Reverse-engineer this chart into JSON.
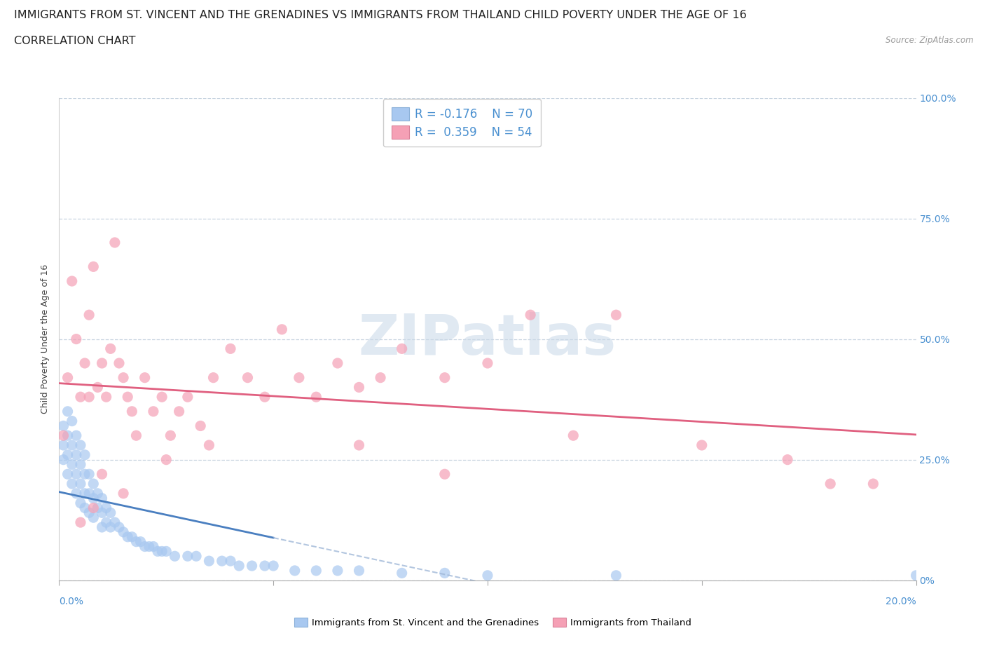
{
  "title": "IMMIGRANTS FROM ST. VINCENT AND THE GRENADINES VS IMMIGRANTS FROM THAILAND CHILD POVERTY UNDER THE AGE OF 16",
  "subtitle": "CORRELATION CHART",
  "source": "Source: ZipAtlas.com",
  "ylabel": "Child Poverty Under the Age of 16",
  "legend_label1": "Immigrants from St. Vincent and the Grenadines",
  "legend_label2": "Immigrants from Thailand",
  "R1": -0.176,
  "N1": 70,
  "R2": 0.359,
  "N2": 54,
  "watermark": "ZIPatlas",
  "color_blue": "#a8c8f0",
  "color_pink": "#f5a0b5",
  "color_blue_line": "#4a7fc0",
  "color_pink_line": "#e06080",
  "color_dashed": "#a0b8d8",
  "blue_x": [
    0.001,
    0.001,
    0.001,
    0.002,
    0.002,
    0.002,
    0.002,
    0.003,
    0.003,
    0.003,
    0.003,
    0.004,
    0.004,
    0.004,
    0.004,
    0.005,
    0.005,
    0.005,
    0.005,
    0.006,
    0.006,
    0.006,
    0.006,
    0.007,
    0.007,
    0.007,
    0.008,
    0.008,
    0.008,
    0.009,
    0.009,
    0.01,
    0.01,
    0.01,
    0.011,
    0.011,
    0.012,
    0.012,
    0.013,
    0.014,
    0.015,
    0.016,
    0.017,
    0.018,
    0.019,
    0.02,
    0.021,
    0.022,
    0.023,
    0.024,
    0.025,
    0.027,
    0.03,
    0.032,
    0.035,
    0.038,
    0.04,
    0.042,
    0.045,
    0.048,
    0.05,
    0.055,
    0.06,
    0.065,
    0.07,
    0.08,
    0.09,
    0.1,
    0.13,
    0.2
  ],
  "blue_y": [
    0.32,
    0.28,
    0.25,
    0.35,
    0.3,
    0.26,
    0.22,
    0.33,
    0.28,
    0.24,
    0.2,
    0.3,
    0.26,
    0.22,
    0.18,
    0.28,
    0.24,
    0.2,
    0.16,
    0.26,
    0.22,
    0.18,
    0.15,
    0.22,
    0.18,
    0.14,
    0.2,
    0.17,
    0.13,
    0.18,
    0.15,
    0.17,
    0.14,
    0.11,
    0.15,
    0.12,
    0.14,
    0.11,
    0.12,
    0.11,
    0.1,
    0.09,
    0.09,
    0.08,
    0.08,
    0.07,
    0.07,
    0.07,
    0.06,
    0.06,
    0.06,
    0.05,
    0.05,
    0.05,
    0.04,
    0.04,
    0.04,
    0.03,
    0.03,
    0.03,
    0.03,
    0.02,
    0.02,
    0.02,
    0.02,
    0.015,
    0.015,
    0.01,
    0.01,
    0.01
  ],
  "pink_x": [
    0.001,
    0.002,
    0.003,
    0.004,
    0.005,
    0.006,
    0.007,
    0.007,
    0.008,
    0.009,
    0.01,
    0.011,
    0.012,
    0.013,
    0.014,
    0.015,
    0.016,
    0.017,
    0.018,
    0.02,
    0.022,
    0.024,
    0.026,
    0.028,
    0.03,
    0.033,
    0.036,
    0.04,
    0.044,
    0.048,
    0.052,
    0.056,
    0.06,
    0.065,
    0.07,
    0.075,
    0.08,
    0.09,
    0.1,
    0.11,
    0.12,
    0.13,
    0.15,
    0.17,
    0.18,
    0.19,
    0.07,
    0.09,
    0.035,
    0.025,
    0.015,
    0.01,
    0.008,
    0.005
  ],
  "pink_y": [
    0.3,
    0.42,
    0.62,
    0.5,
    0.38,
    0.45,
    0.55,
    0.38,
    0.65,
    0.4,
    0.45,
    0.38,
    0.48,
    0.7,
    0.45,
    0.42,
    0.38,
    0.35,
    0.3,
    0.42,
    0.35,
    0.38,
    0.3,
    0.35,
    0.38,
    0.32,
    0.42,
    0.48,
    0.42,
    0.38,
    0.52,
    0.42,
    0.38,
    0.45,
    0.4,
    0.42,
    0.48,
    0.42,
    0.45,
    0.55,
    0.3,
    0.55,
    0.28,
    0.25,
    0.2,
    0.2,
    0.28,
    0.22,
    0.28,
    0.25,
    0.18,
    0.22,
    0.15,
    0.12
  ],
  "xlim": [
    0,
    0.2
  ],
  "ylim": [
    0,
    1.0
  ],
  "yticks": [
    0.0,
    0.25,
    0.5,
    0.75,
    1.0
  ],
  "ytick_labels": [
    "0%",
    "25.0%",
    "50.0%",
    "75.0%",
    "100.0%"
  ],
  "xtick_positions": [
    0.0,
    0.05,
    0.1,
    0.15,
    0.2
  ],
  "grid_color": "#c8d4e0",
  "background_color": "#ffffff",
  "title_fontsize": 11.5,
  "subtitle_fontsize": 11.5,
  "axis_label_fontsize": 9,
  "tick_fontsize": 10
}
